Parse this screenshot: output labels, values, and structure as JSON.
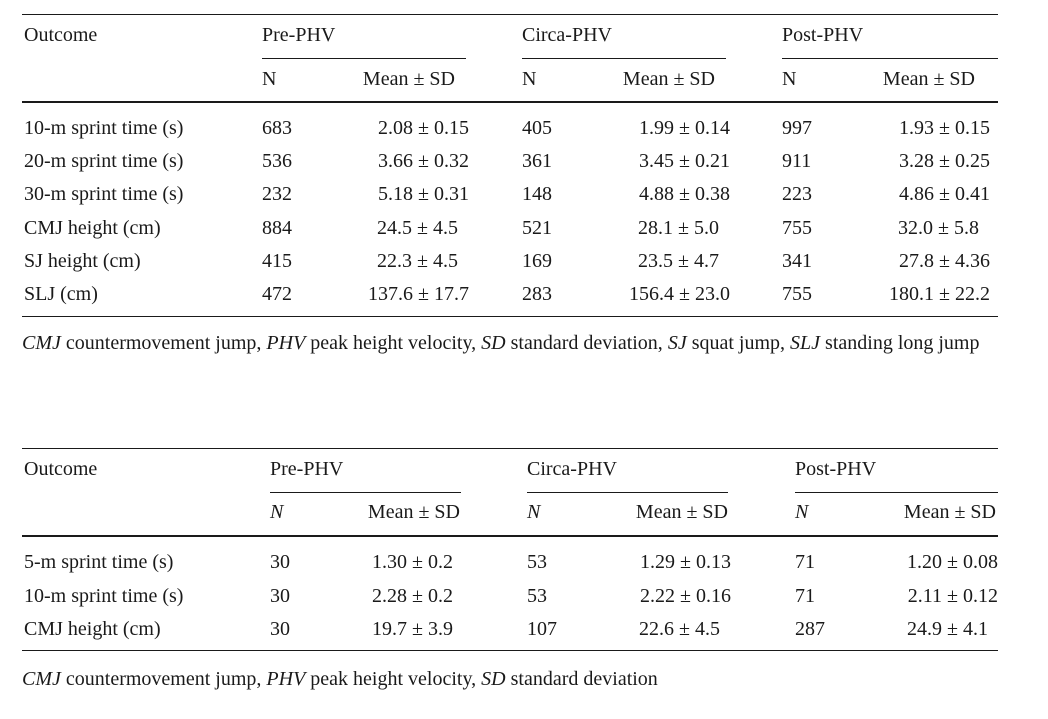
{
  "table1": {
    "header": {
      "outcome": "Outcome",
      "groups": [
        "Pre-PHV",
        "Circa-PHV",
        "Post-PHV"
      ],
      "n_label": "N",
      "mean_label": "Mean ± SD"
    },
    "rows": [
      {
        "outcome": "10-m sprint time (s)",
        "pre_n": "683",
        "pre_mean": "2.08 ± 0.15",
        "circa_n": "405",
        "circa_mean": "1.99 ± 0.14",
        "post_n": "997",
        "post_mean": "1.93 ± 0.15"
      },
      {
        "outcome": "20-m sprint time (s)",
        "pre_n": "536",
        "pre_mean": "3.66 ± 0.32",
        "circa_n": "361",
        "circa_mean": "3.45 ± 0.21",
        "post_n": "911",
        "post_mean": "3.28 ± 0.25"
      },
      {
        "outcome": "30-m sprint time (s)",
        "pre_n": "232",
        "pre_mean": "5.18 ± 0.31",
        "circa_n": "148",
        "circa_mean": "4.88 ± 0.38",
        "post_n": "223",
        "post_mean": "4.86 ± 0.41"
      },
      {
        "outcome": "CMJ height (cm)",
        "pre_n": "884",
        "pre_mean": "24.5 ± 4.5",
        "circa_n": "521",
        "circa_mean": "28.1 ± 5.0",
        "post_n": "755",
        "post_mean": "32.0 ± 5.8"
      },
      {
        "outcome": "SJ height (cm)",
        "pre_n": "415",
        "pre_mean": "22.3 ± 4.5",
        "circa_n": "169",
        "circa_mean": "23.5 ± 4.7",
        "post_n": "341",
        "post_mean": "27.8 ± 4.36"
      },
      {
        "outcome": "SLJ (cm)",
        "pre_n": "472",
        "pre_mean": "137.6 ± 17.7",
        "circa_n": "283",
        "circa_mean": "156.4 ± 23.0",
        "post_n": "755",
        "post_mean": "180.1 ± 22.2"
      }
    ],
    "caption": {
      "parts": [
        {
          "abbr": "CMJ",
          "text": " countermovement jump, "
        },
        {
          "abbr": "PHV",
          "text": " peak height velocity, "
        },
        {
          "abbr": "SD",
          "text": " standard deviation, "
        },
        {
          "abbr": "SJ",
          "text": " squat jump, "
        },
        {
          "abbr": "SLJ",
          "text": " standing long jump"
        }
      ]
    }
  },
  "table2": {
    "header": {
      "outcome": "Outcome",
      "groups": [
        "Pre-PHV",
        "Circa-PHV",
        "Post-PHV"
      ],
      "n_label": "N",
      "mean_label": "Mean ± SD"
    },
    "rows": [
      {
        "outcome": "5-m sprint time (s)",
        "pre_n": "30",
        "pre_mean": "1.30 ± 0.2",
        "circa_n": "53",
        "circa_mean": "1.29 ± 0.13",
        "post_n": "71",
        "post_mean": "1.20 ± 0.08"
      },
      {
        "outcome": "10-m sprint time (s)",
        "pre_n": "30",
        "pre_mean": "2.28 ± 0.2",
        "circa_n": "53",
        "circa_mean": "2.22 ± 0.16",
        "post_n": "71",
        "post_mean": "2.11 ± 0.12"
      },
      {
        "outcome": "CMJ height (cm)",
        "pre_n": "30",
        "pre_mean": "19.7 ± 3.9",
        "circa_n": "107",
        "circa_mean": "22.6 ± 4.5",
        "post_n": "287",
        "post_mean": "24.9 ± 4.1"
      }
    ],
    "caption": {
      "parts": [
        {
          "abbr": "CMJ",
          "text": " countermovement jump, "
        },
        {
          "abbr": "PHV",
          "text": " peak height velocity, "
        },
        {
          "abbr": "SD",
          "text": " standard deviation"
        }
      ]
    }
  }
}
